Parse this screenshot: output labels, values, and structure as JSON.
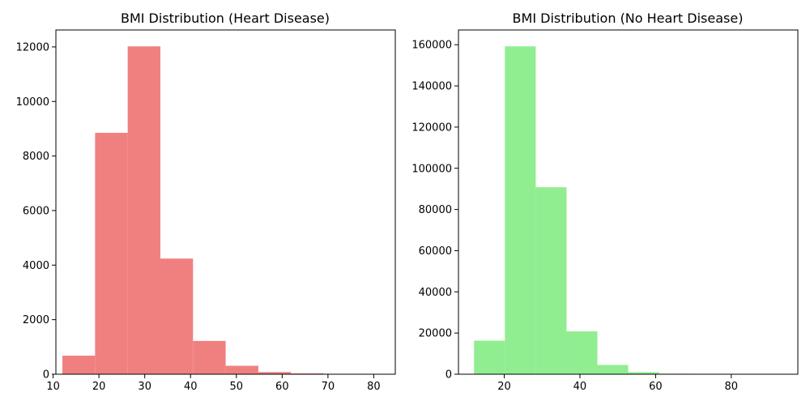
{
  "chart_data": [
    {
      "type": "bar",
      "title": "BMI Distribution (Heart Disease)",
      "xlabel": "",
      "ylabel": "",
      "color": "#f08080",
      "bin_edges": [
        12.02,
        19.15,
        26.28,
        33.41,
        40.54,
        47.67,
        54.8,
        61.93,
        69.06,
        76.19,
        83.33
      ],
      "values": [
        680,
        8850,
        12020,
        4240,
        1220,
        310,
        80,
        30,
        10,
        5
      ],
      "xlim": [
        10.6,
        84.7
      ],
      "ylim": [
        0,
        12621
      ],
      "xticks": [
        10,
        20,
        30,
        40,
        50,
        60,
        70,
        80
      ],
      "yticks": [
        0,
        2000,
        4000,
        6000,
        8000,
        10000,
        12000
      ]
    },
    {
      "type": "bar",
      "title": "BMI Distribution (No Heart Disease)",
      "xlabel": "",
      "ylabel": "",
      "color": "#90ee90",
      "bin_edges": [
        12.02,
        20.17,
        28.32,
        36.47,
        44.62,
        52.77,
        60.92,
        69.07,
        77.22,
        85.37,
        93.52
      ],
      "values": [
        16300,
        159200,
        90800,
        20800,
        4500,
        1000,
        250,
        80,
        30,
        10
      ],
      "xlim": [
        7.9,
        97.6
      ],
      "ylim": [
        0,
        167160
      ],
      "xticks": [
        20,
        40,
        60,
        80
      ],
      "yticks": [
        0,
        20000,
        40000,
        60000,
        80000,
        100000,
        120000,
        140000,
        160000
      ]
    }
  ]
}
